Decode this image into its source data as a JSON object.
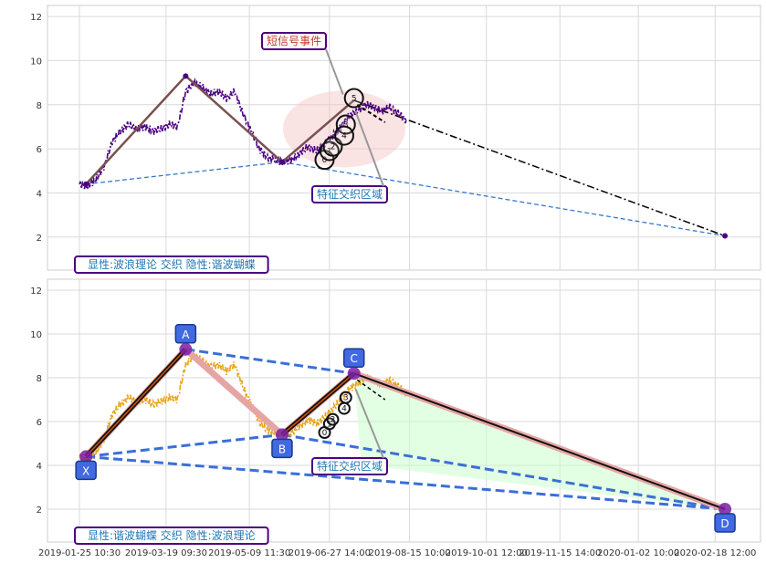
{
  "chart_data": [
    {
      "type": "line",
      "panel": "top",
      "ylim": [
        0.5,
        12.5
      ],
      "yticks": [
        2,
        4,
        6,
        8,
        10,
        12
      ],
      "grid": true,
      "caption": "显性:波浪理论 交织 隐性:谐波蝴蝶",
      "annotations": {
        "short_signal": "短信号事件",
        "zone": "特征交织区域"
      },
      "price_series": {
        "color": "#4b0082",
        "style": "dashdot",
        "x_days": [
          0,
          5,
          10,
          15,
          20,
          25,
          30,
          35,
          40,
          45,
          50,
          55,
          60,
          65,
          70,
          75,
          80,
          85,
          90,
          95,
          100,
          105,
          110,
          115,
          120,
          125,
          130,
          135,
          140,
          145,
          150,
          155,
          160,
          165,
          170,
          175,
          180,
          185,
          190,
          195,
          200
        ],
        "values": [
          4.4,
          4.3,
          4.6,
          5.2,
          6.3,
          6.8,
          7.1,
          6.9,
          7.0,
          6.8,
          6.9,
          7.1,
          7.0,
          8.6,
          9.0,
          8.8,
          8.5,
          8.6,
          8.3,
          8.6,
          7.6,
          6.8,
          6.0,
          5.6,
          5.5,
          5.4,
          5.5,
          5.8,
          6.1,
          5.9,
          6.2,
          6.6,
          7.0,
          7.5,
          7.7,
          8.0,
          7.9,
          7.7,
          7.9,
          7.6,
          7.3
        ]
      },
      "wave_lines": [
        {
          "x_days": [
            4,
            65,
            124
          ],
          "values": [
            4.4,
            9.3,
            5.4
          ],
          "color": "#7a5050"
        },
        {
          "x_days": [
            124,
            168
          ],
          "values": [
            5.4,
            8.2
          ],
          "color": "#7a5050"
        }
      ],
      "baseline": {
        "x_days": [
          4,
          124,
          395
        ],
        "values": [
          4.4,
          5.4,
          2.05
        ],
        "color": "#3a78c9",
        "style": "dashed"
      },
      "projection": {
        "x_days": [
          168,
          395
        ],
        "values": [
          8.2,
          2.05
        ],
        "color": "#000000",
        "style": "dashdot"
      },
      "wave_markers": [
        {
          "label": "0",
          "x_days": 150,
          "value": 5.5
        },
        {
          "label": "1",
          "x_days": 153,
          "value": 5.9
        },
        {
          "label": "2",
          "x_days": 155,
          "value": 6.1
        },
        {
          "label": "3",
          "x_days": 163,
          "value": 7.1
        },
        {
          "label": "4",
          "x_days": 162,
          "value": 6.6
        },
        {
          "label": "5",
          "x_days": 168,
          "value": 8.3
        }
      ],
      "endpoint": {
        "x_days": 395,
        "value": 2.05
      }
    },
    {
      "type": "line",
      "panel": "bottom",
      "ylim": [
        0.5,
        12.5
      ],
      "yticks": [
        2,
        4,
        6,
        8,
        10,
        12
      ],
      "grid": true,
      "caption": "显性:谐波蝴蝶 交织 隐性:波浪理论",
      "annotations": {
        "zone": "特征交织区域"
      },
      "price_series": {
        "color": "#e8a317",
        "style": "dashdot",
        "x_days": [
          0,
          5,
          10,
          15,
          20,
          25,
          30,
          35,
          40,
          45,
          50,
          55,
          60,
          65,
          70,
          75,
          80,
          85,
          90,
          95,
          100,
          105,
          110,
          115,
          120,
          125,
          130,
          135,
          140,
          145,
          150,
          155,
          160,
          165,
          170,
          175,
          180,
          185,
          190,
          195,
          200
        ],
        "values": [
          4.4,
          4.3,
          4.6,
          5.2,
          6.3,
          6.8,
          7.1,
          6.9,
          7.0,
          6.8,
          6.9,
          7.1,
          7.0,
          8.6,
          9.0,
          8.8,
          8.5,
          8.6,
          8.3,
          8.6,
          7.6,
          6.8,
          6.0,
          5.6,
          5.5,
          5.4,
          5.5,
          5.8,
          6.1,
          5.9,
          6.2,
          6.6,
          7.0,
          7.5,
          7.7,
          8.0,
          7.9,
          7.7,
          7.9,
          7.6,
          7.3
        ]
      },
      "harmonic_points": [
        {
          "label": "X",
          "x_days": 4,
          "value": 4.4
        },
        {
          "label": "A",
          "x_days": 65,
          "value": 9.3
        },
        {
          "label": "B",
          "x_days": 124,
          "value": 5.4
        },
        {
          "label": "C",
          "x_days": 168,
          "value": 8.2
        },
        {
          "label": "D",
          "x_days": 395,
          "value": 2.0
        }
      ],
      "wave_markers": [
        {
          "label": "0",
          "x_days": 150,
          "value": 5.5
        },
        {
          "label": "1",
          "x_days": 153,
          "value": 5.9
        },
        {
          "label": "2",
          "x_days": 155,
          "value": 6.1
        },
        {
          "label": "3",
          "x_days": 163,
          "value": 7.1
        },
        {
          "label": "4",
          "x_days": 162,
          "value": 6.6
        }
      ]
    }
  ],
  "x_axis": {
    "start_date": "2019-01-25",
    "tick_labels": [
      "2019-01-25 10:30",
      "2019-03-19 09:30",
      "2019-05-09 11:30",
      "2019-06-27 14:00",
      "2019-08-15 10:00",
      "2019-10-01 12:00",
      "2019-11-15 14:00",
      "2020-01-02 10:00",
      "2020-02-18 12:00"
    ],
    "tick_days": [
      0,
      53,
      104,
      153,
      202,
      249,
      294,
      342,
      389
    ]
  }
}
